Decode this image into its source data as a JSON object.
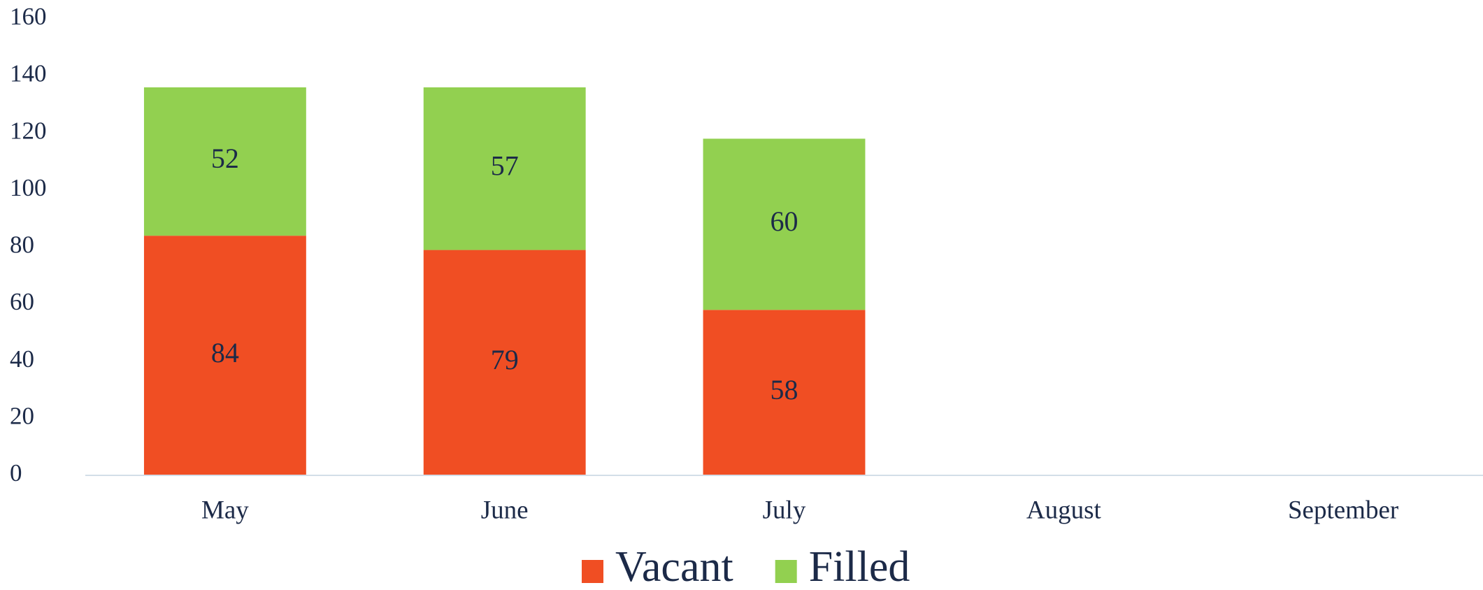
{
  "chart_data": {
    "type": "stacked_bar",
    "categories": [
      "May",
      "June",
      "July",
      "August",
      "September"
    ],
    "series": [
      {
        "name": "Vacant",
        "color": "#f04e23",
        "values": [
          84,
          79,
          58,
          null,
          null
        ]
      },
      {
        "name": "Filled",
        "color": "#92d050",
        "values": [
          52,
          57,
          60,
          null,
          null
        ]
      }
    ],
    "ylim": [
      0,
      160
    ],
    "yticks": [
      0,
      20,
      40,
      60,
      80,
      100,
      120,
      140,
      160
    ],
    "legend": "bottom"
  }
}
